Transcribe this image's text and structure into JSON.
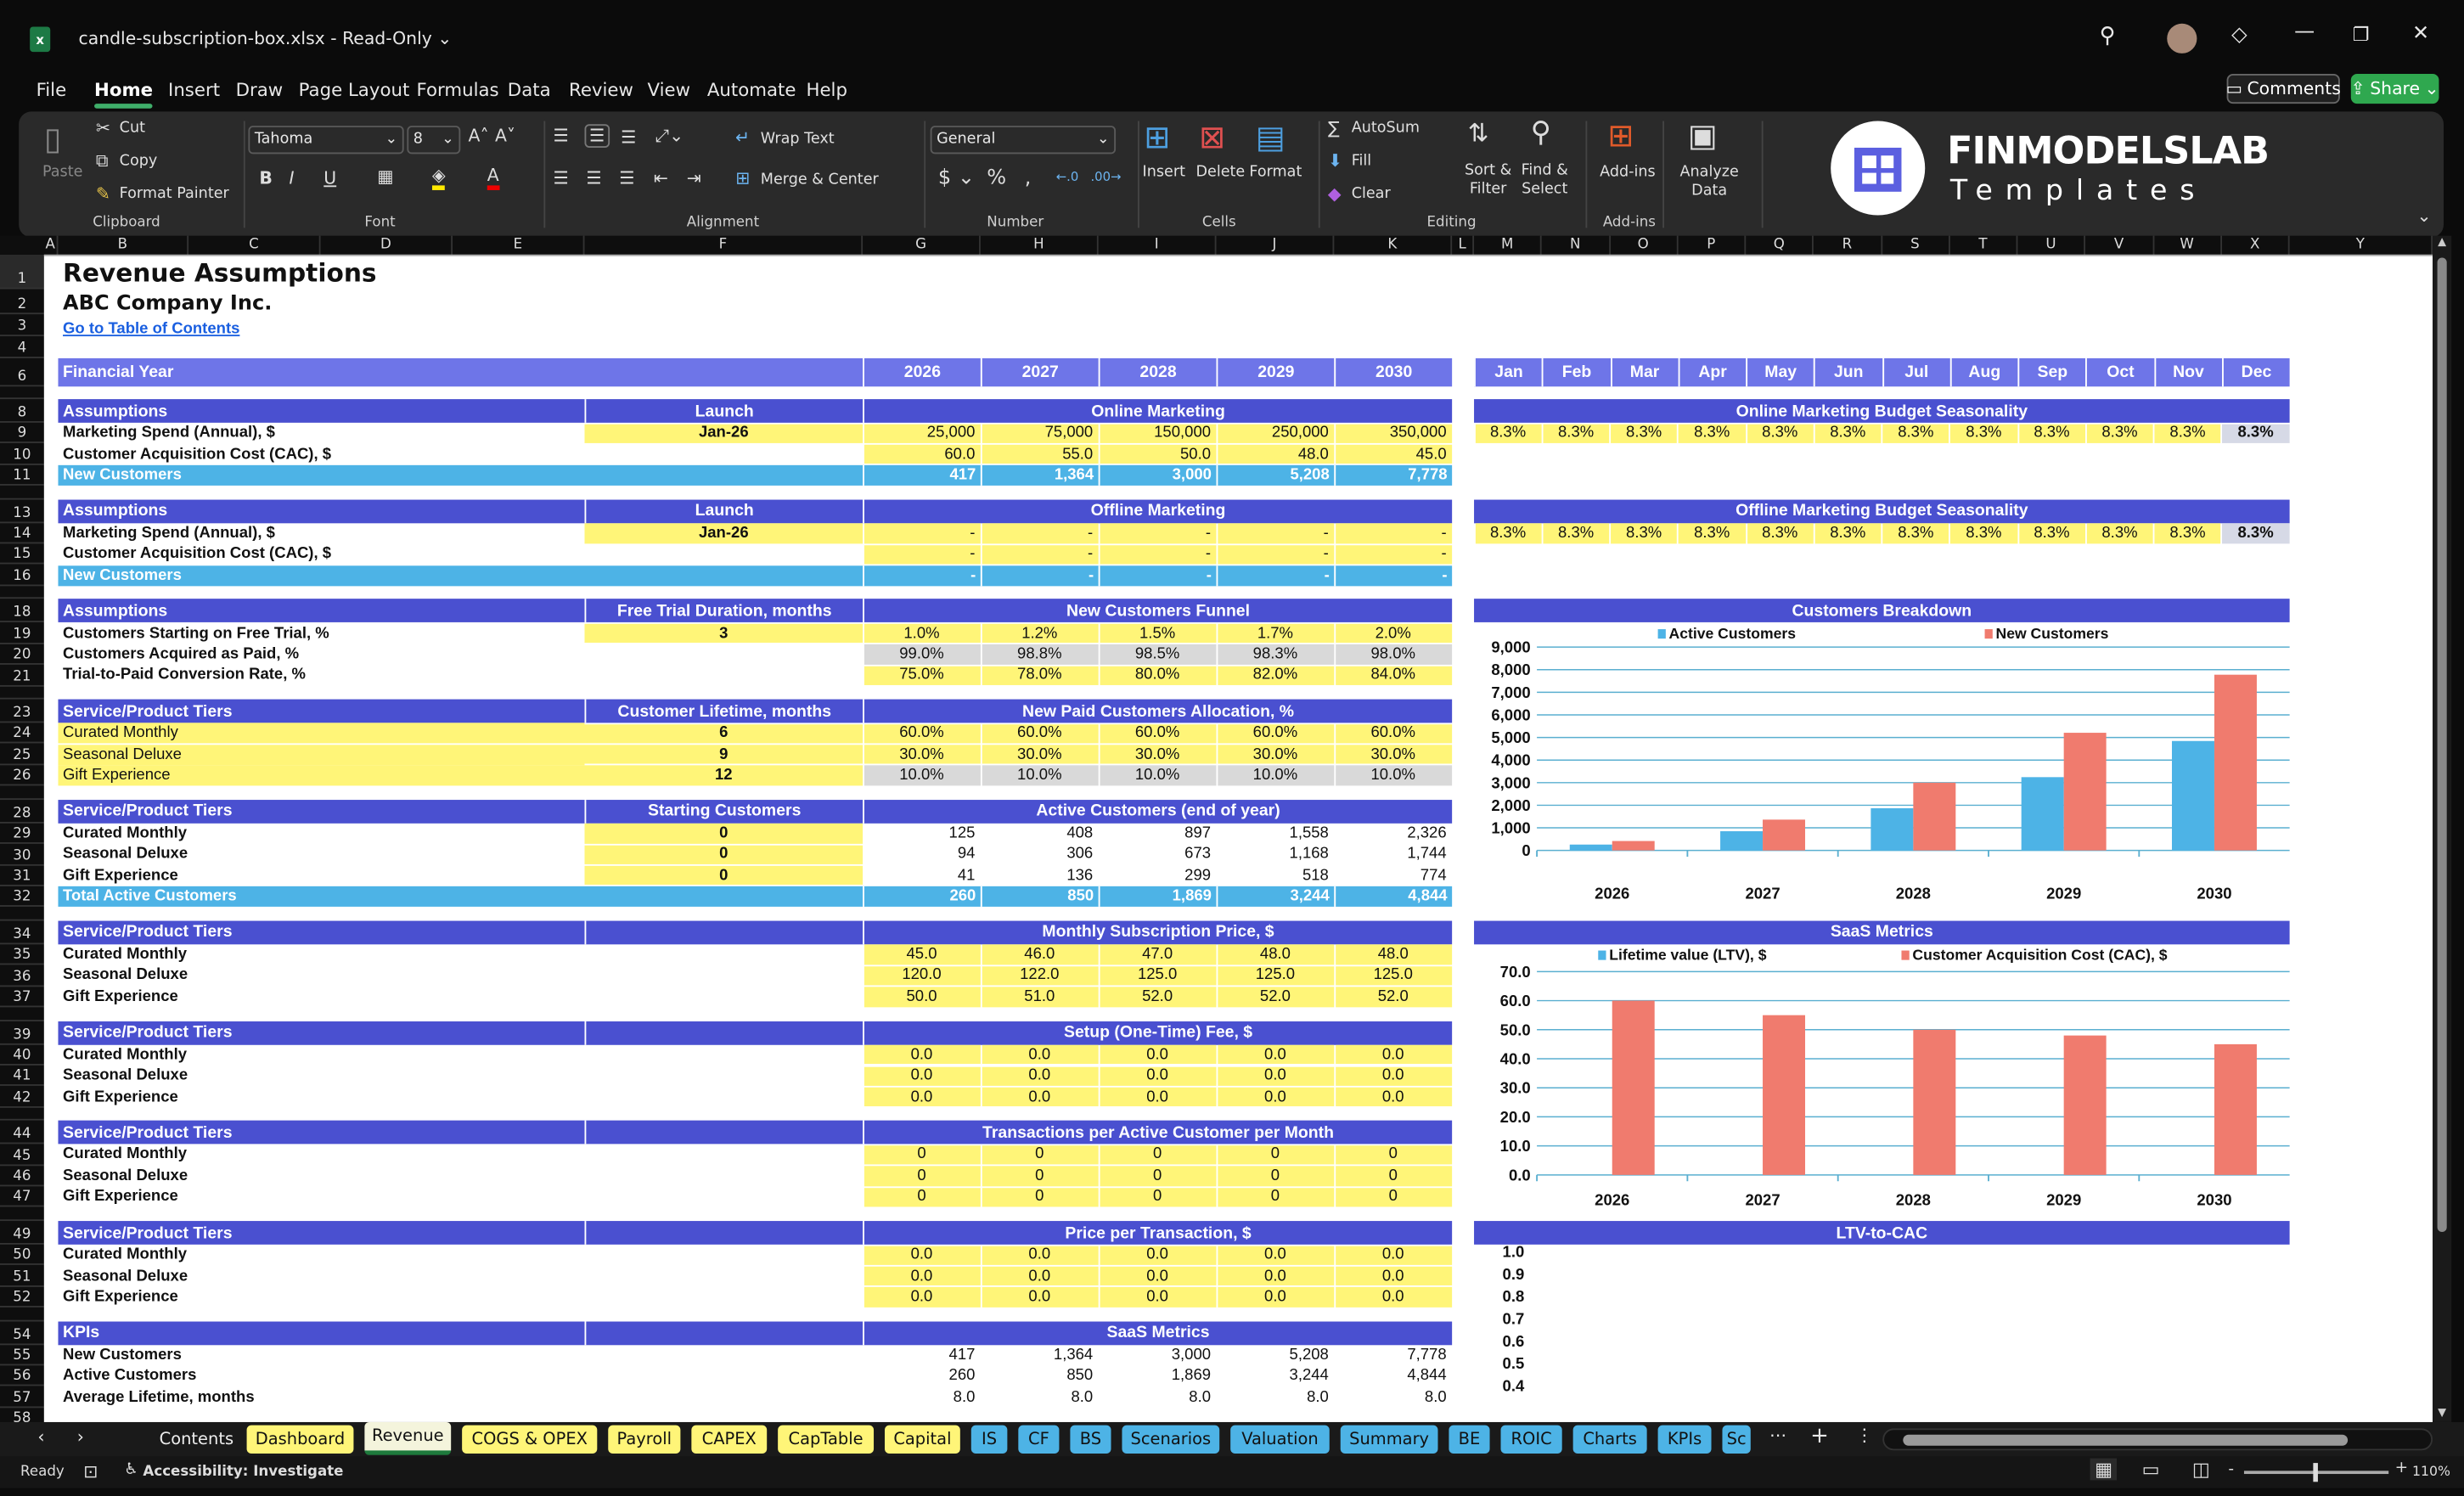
{
  "app": {
    "file_name": "candle-subscription-box.xlsx",
    "separator": "-",
    "mode": "Read-Only"
  },
  "menu": {
    "items": [
      "File",
      "Home",
      "Insert",
      "Draw",
      "Page Layout",
      "Formulas",
      "Data",
      "Review",
      "View",
      "Automate",
      "Help"
    ],
    "active": "Home"
  },
  "header_buttons": {
    "comments": "Comments",
    "share": "Share"
  },
  "ribbon": {
    "clipboard": {
      "paste": "Paste",
      "cut": "Cut",
      "copy": "Copy",
      "format_painter": "Format Painter",
      "label": "Clipboard"
    },
    "font": {
      "family": "Tahoma",
      "size": "8",
      "label": "Font",
      "bold": "B",
      "italic": "I",
      "underline": "U"
    },
    "alignment": {
      "wrap_text": "Wrap Text",
      "merge_center": "Merge & Center",
      "label": "Alignment"
    },
    "number": {
      "format": "General",
      "label": "Number"
    },
    "cells": {
      "insert": "Insert",
      "delete": "Delete",
      "format": "Format",
      "label": "Cells"
    },
    "editing": {
      "autosum": "AutoSum",
      "fill": "Fill",
      "clear": "Clear",
      "sort_filter_1": "Sort &",
      "sort_filter_2": "Filter",
      "find_select_1": "Find &",
      "find_select_2": "Select",
      "label": "Editing"
    },
    "addins": {
      "button": "Add-ins",
      "label": "Add-ins"
    },
    "analyze": {
      "line1": "Analyze",
      "line2": "Data"
    },
    "logo": {
      "brand": "FINMODELSLAB",
      "sub": "Templates",
      "accent": "#5b5fe0"
    }
  },
  "columns": [
    "A",
    "B",
    "C",
    "D",
    "E",
    "F",
    "G",
    "H",
    "I",
    "J",
    "K",
    "L",
    "M",
    "N",
    "O",
    "P",
    "Q",
    "R",
    "S",
    "T",
    "U",
    "V",
    "W",
    "X",
    "Y"
  ],
  "colors": {
    "header": "#4a50d0",
    "financial_year": "#6e75e8",
    "input": "#fff578",
    "calc": "#d9d9d9",
    "total": "#4db3e6",
    "bar_blue": "#4db3e6",
    "bar_red": "#f07b6e"
  },
  "sheet": {
    "title": "Revenue Assumptions",
    "company": "ABC Company Inc.",
    "toc_link": "Go to Table of Contents",
    "rows": [
      {
        "r": 6,
        "t": "fy",
        "label": "Financial Year",
        "vals": [
          "2026",
          "2027",
          "2028",
          "2029",
          "2030"
        ],
        "right_vals": [
          "Jan",
          "Feb",
          "Mar",
          "Apr",
          "May",
          "Jun",
          "Jul",
          "Aug",
          "Sep",
          "Oct",
          "Nov",
          "Dec"
        ]
      },
      {
        "r": 8,
        "t": "hdr",
        "label": "Assumptions",
        "f": "Launch",
        "title": "Online Marketing",
        "right_title": "Online Marketing Budget Seasonality"
      },
      {
        "r": 9,
        "t": "data",
        "label": "Marketing Spend (Annual), $",
        "f": "Jan-26",
        "ff": "y",
        "vals": [
          "25,000",
          "75,000",
          "150,000",
          "250,000",
          "350,000"
        ],
        "vf": "y",
        "al": "r",
        "right_vals": [
          "8.3%",
          "8.3%",
          "8.3%",
          "8.3%",
          "8.3%",
          "8.3%",
          "8.3%",
          "8.3%",
          "8.3%",
          "8.3%",
          "8.3%",
          "8.3%"
        ]
      },
      {
        "r": 10,
        "t": "data",
        "label": "Customer Acquisition Cost (CAC), $",
        "vals": [
          "60.0",
          "55.0",
          "50.0",
          "48.0",
          "45.0"
        ],
        "vf": "y",
        "al": "r"
      },
      {
        "r": 11,
        "t": "tot",
        "label": "New Customers",
        "vals": [
          "417",
          "1,364",
          "3,000",
          "5,208",
          "7,778"
        ]
      },
      {
        "r": 13,
        "t": "hdr",
        "label": "Assumptions",
        "f": "Launch",
        "title": "Offline Marketing",
        "right_title": "Offline Marketing Budget Seasonality"
      },
      {
        "r": 14,
        "t": "data",
        "label": "Marketing Spend (Annual), $",
        "f": "Jan-26",
        "ff": "y",
        "vals": [
          "-",
          "-",
          "-",
          "-",
          "-"
        ],
        "vf": "y",
        "al": "r",
        "right_vals": [
          "8.3%",
          "8.3%",
          "8.3%",
          "8.3%",
          "8.3%",
          "8.3%",
          "8.3%",
          "8.3%",
          "8.3%",
          "8.3%",
          "8.3%",
          "8.3%"
        ]
      },
      {
        "r": 15,
        "t": "data",
        "label": "Customer Acquisition Cost (CAC), $",
        "vals": [
          "-",
          "-",
          "-",
          "-",
          "-"
        ],
        "vf": "y",
        "al": "r"
      },
      {
        "r": 16,
        "t": "tot",
        "label": "New Customers",
        "vals": [
          "-",
          "-",
          "-",
          "-",
          "-"
        ]
      },
      {
        "r": 18,
        "t": "hdr",
        "label": "Assumptions",
        "f": "Free Trial Duration, months",
        "title": "New Customers Funnel"
      },
      {
        "r": 19,
        "t": "data",
        "label": "Customers Starting on Free Trial, %",
        "f": "3",
        "ff": "y",
        "vals": [
          "1.0%",
          "1.2%",
          "1.5%",
          "1.7%",
          "2.0%"
        ],
        "vf": "y",
        "al": "c"
      },
      {
        "r": 20,
        "t": "data",
        "label": "Customers Acquired as Paid, %",
        "vals": [
          "99.0%",
          "98.8%",
          "98.5%",
          "98.3%",
          "98.0%"
        ],
        "vf": "g",
        "al": "c"
      },
      {
        "r": 21,
        "t": "data",
        "label": "Trial-to-Paid Conversion Rate, %",
        "vals": [
          "75.0%",
          "78.0%",
          "80.0%",
          "82.0%",
          "84.0%"
        ],
        "vf": "y",
        "al": "c"
      },
      {
        "r": 23,
        "t": "hdr",
        "label": "Service/Product Tiers",
        "f": "Customer Lifetime, months",
        "title": "New Paid Customers Allocation, %"
      },
      {
        "r": 24,
        "t": "data",
        "label": "Curated Monthly",
        "lf": "y",
        "lw": "n",
        "f": "6",
        "ff": "y",
        "vals": [
          "60.0%",
          "60.0%",
          "60.0%",
          "60.0%",
          "60.0%"
        ],
        "vf": "y",
        "al": "c"
      },
      {
        "r": 25,
        "t": "data",
        "label": "Seasonal Deluxe",
        "lf": "y",
        "lw": "n",
        "f": "9",
        "ff": "y",
        "vals": [
          "30.0%",
          "30.0%",
          "30.0%",
          "30.0%",
          "30.0%"
        ],
        "vf": "y",
        "al": "c"
      },
      {
        "r": 26,
        "t": "data",
        "label": "Gift Experience",
        "lf": "y",
        "lw": "n",
        "f": "12",
        "ff": "y",
        "vals": [
          "10.0%",
          "10.0%",
          "10.0%",
          "10.0%",
          "10.0%"
        ],
        "vf": "g",
        "al": "c"
      },
      {
        "r": 28,
        "t": "hdr",
        "label": "Service/Product Tiers",
        "f": "Starting Customers",
        "title": "Active Customers (end of year)"
      },
      {
        "r": 29,
        "t": "data",
        "label": "Curated Monthly",
        "f": "0",
        "ff": "y",
        "vals": [
          "125",
          "408",
          "897",
          "1,558",
          "2,326"
        ],
        "vf": "w",
        "al": "r"
      },
      {
        "r": 30,
        "t": "data",
        "label": "Seasonal Deluxe",
        "f": "0",
        "ff": "y",
        "vals": [
          "94",
          "306",
          "673",
          "1,168",
          "1,744"
        ],
        "vf": "w",
        "al": "r"
      },
      {
        "r": 31,
        "t": "data",
        "label": "Gift Experience",
        "f": "0",
        "ff": "y",
        "vals": [
          "41",
          "136",
          "299",
          "518",
          "774"
        ],
        "vf": "w",
        "al": "r"
      },
      {
        "r": 32,
        "t": "tot",
        "label": "Total Active Customers",
        "vals": [
          "260",
          "850",
          "1,869",
          "3,244",
          "4,844"
        ]
      },
      {
        "r": 34,
        "t": "hdr",
        "label": "Service/Product Tiers",
        "f": "",
        "title": "Monthly Subscription Price, $",
        "right_title": "SaaS Metrics"
      },
      {
        "r": 35,
        "t": "data",
        "label": "Curated Monthly",
        "vals": [
          "45.0",
          "46.0",
          "47.0",
          "48.0",
          "48.0"
        ],
        "vf": "y",
        "al": "c"
      },
      {
        "r": 36,
        "t": "data",
        "label": "Seasonal Deluxe",
        "vals": [
          "120.0",
          "122.0",
          "125.0",
          "125.0",
          "125.0"
        ],
        "vf": "y",
        "al": "c"
      },
      {
        "r": 37,
        "t": "data",
        "label": "Gift Experience",
        "vals": [
          "50.0",
          "51.0",
          "52.0",
          "52.0",
          "52.0"
        ],
        "vf": "y",
        "al": "c"
      },
      {
        "r": 39,
        "t": "hdr",
        "label": "Service/Product Tiers",
        "f": "",
        "title": "Setup (One-Time) Fee, $"
      },
      {
        "r": 40,
        "t": "data",
        "label": "Curated Monthly",
        "vals": [
          "0.0",
          "0.0",
          "0.0",
          "0.0",
          "0.0"
        ],
        "vf": "y",
        "al": "c"
      },
      {
        "r": 41,
        "t": "data",
        "label": "Seasonal Deluxe",
        "vals": [
          "0.0",
          "0.0",
          "0.0",
          "0.0",
          "0.0"
        ],
        "vf": "y",
        "al": "c"
      },
      {
        "r": 42,
        "t": "data",
        "label": "Gift Experience",
        "vals": [
          "0.0",
          "0.0",
          "0.0",
          "0.0",
          "0.0"
        ],
        "vf": "y",
        "al": "c"
      },
      {
        "r": 44,
        "t": "hdr",
        "label": "Service/Product Tiers",
        "f": "",
        "title": "Transactions per Active Customer per Month"
      },
      {
        "r": 45,
        "t": "data",
        "label": "Curated Monthly",
        "vals": [
          "0",
          "0",
          "0",
          "0",
          "0"
        ],
        "vf": "y",
        "al": "c"
      },
      {
        "r": 46,
        "t": "data",
        "label": "Seasonal Deluxe",
        "vals": [
          "0",
          "0",
          "0",
          "0",
          "0"
        ],
        "vf": "y",
        "al": "c"
      },
      {
        "r": 47,
        "t": "data",
        "label": "Gift Experience",
        "vals": [
          "0",
          "0",
          "0",
          "0",
          "0"
        ],
        "vf": "y",
        "al": "c"
      },
      {
        "r": 49,
        "t": "hdr",
        "label": "Service/Product Tiers",
        "f": "",
        "title": "Price per Transaction, $",
        "right_title": "LTV-to-CAC"
      },
      {
        "r": 50,
        "t": "data",
        "label": "Curated Monthly",
        "vals": [
          "0.0",
          "0.0",
          "0.0",
          "0.0",
          "0.0"
        ],
        "vf": "y",
        "al": "c"
      },
      {
        "r": 51,
        "t": "data",
        "label": "Seasonal Deluxe",
        "vals": [
          "0.0",
          "0.0",
          "0.0",
          "0.0",
          "0.0"
        ],
        "vf": "y",
        "al": "c"
      },
      {
        "r": 52,
        "t": "data",
        "label": "Gift Experience",
        "vals": [
          "0.0",
          "0.0",
          "0.0",
          "0.0",
          "0.0"
        ],
        "vf": "y",
        "al": "c"
      },
      {
        "r": 54,
        "t": "hdr",
        "label": "KPIs",
        "f": "",
        "title": "SaaS Metrics"
      },
      {
        "r": 55,
        "t": "data",
        "label": "New Customers",
        "vals": [
          "417",
          "1,364",
          "3,000",
          "5,208",
          "7,778"
        ],
        "vf": "w",
        "al": "r"
      },
      {
        "r": 56,
        "t": "data",
        "label": "Active Customers",
        "vals": [
          "260",
          "850",
          "1,869",
          "3,244",
          "4,844"
        ],
        "vf": "w",
        "al": "r"
      },
      {
        "r": 57,
        "t": "data",
        "label": "Average Lifetime, months",
        "vals": [
          "8.0",
          "8.0",
          "8.0",
          "8.0",
          "8.0"
        ],
        "vf": "w",
        "al": "r"
      }
    ]
  },
  "chart_data": [
    {
      "type": "bar",
      "title": "Customers Breakdown",
      "categories": [
        "2026",
        "2027",
        "2028",
        "2029",
        "2030"
      ],
      "series": [
        {
          "name": "Active Customers",
          "values": [
            260,
            850,
            1869,
            3244,
            4844
          ],
          "color": "#4db3e6"
        },
        {
          "name": "New Customers",
          "values": [
            417,
            1364,
            3000,
            5208,
            7778
          ],
          "color": "#f07b6e"
        }
      ],
      "ylim": [
        0,
        9000
      ],
      "yticks": [
        "0",
        "1,000",
        "2,000",
        "3,000",
        "4,000",
        "5,000",
        "6,000",
        "7,000",
        "8,000",
        "9,000"
      ],
      "grid": true,
      "legend": "top"
    },
    {
      "type": "bar",
      "title": "SaaS Metrics",
      "categories": [
        "2026",
        "2027",
        "2028",
        "2029",
        "2030"
      ],
      "series": [
        {
          "name": "Lifetime value (LTV), $",
          "values": [
            0,
            0,
            0,
            0,
            0
          ],
          "color": "#4db3e6"
        },
        {
          "name": "Customer Acquisition Cost (CAC), $",
          "values": [
            60,
            55,
            50,
            48,
            45
          ],
          "color": "#f07b6e"
        }
      ],
      "ylim": [
        0,
        70
      ],
      "yticks": [
        "0.0",
        "10.0",
        "20.0",
        "30.0",
        "40.0",
        "50.0",
        "60.0",
        "70.0"
      ],
      "grid": true,
      "legend": "top"
    },
    {
      "type": "bar",
      "title": "LTV-to-CAC",
      "yticks_visible": [
        "1.0",
        "0.9",
        "0.8",
        "0.7",
        "0.6",
        "0.5",
        "0.4"
      ]
    }
  ],
  "sheet_tabs": [
    {
      "label": "Contents",
      "color": "none"
    },
    {
      "label": "Dashboard",
      "color": "yellow"
    },
    {
      "label": "Revenue",
      "color": "active"
    },
    {
      "label": "COGS & OPEX",
      "color": "yellow"
    },
    {
      "label": "Payroll",
      "color": "yellow"
    },
    {
      "label": "CAPEX",
      "color": "yellow"
    },
    {
      "label": "CapTable",
      "color": "yellow"
    },
    {
      "label": "Capital",
      "color": "yellow"
    },
    {
      "label": "IS",
      "color": "blue"
    },
    {
      "label": "CF",
      "color": "blue"
    },
    {
      "label": "BS",
      "color": "blue"
    },
    {
      "label": "Scenarios",
      "color": "blue"
    },
    {
      "label": "Valuation",
      "color": "blue"
    },
    {
      "label": "Summary",
      "color": "blue"
    },
    {
      "label": "BE",
      "color": "blue"
    },
    {
      "label": "ROIC",
      "color": "blue"
    },
    {
      "label": "Charts",
      "color": "blue"
    },
    {
      "label": "KPIs",
      "color": "blue"
    },
    {
      "label": "Sc",
      "color": "blue"
    }
  ],
  "status": {
    "ready": "Ready",
    "accessibility": "Accessibility: Investigate",
    "zoom": "110%",
    "zoom_level_percent": 110
  }
}
